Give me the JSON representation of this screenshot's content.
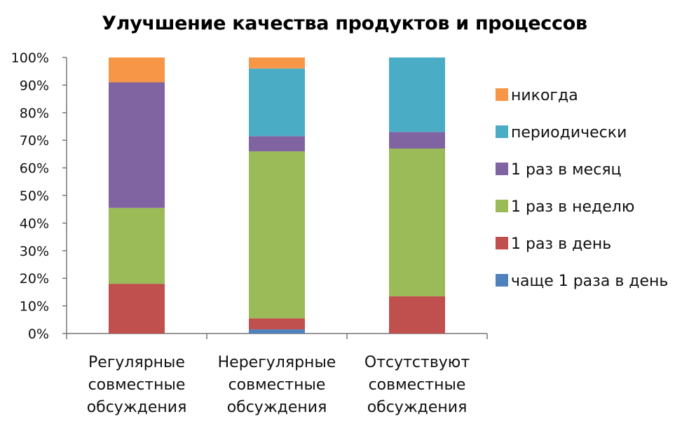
{
  "chart_data": {
    "type": "bar",
    "stacked": true,
    "title": "Улучшение качества продуктов и процессов",
    "categories": [
      [
        "Регулярные",
        "совместные",
        "обсуждения"
      ],
      [
        "Нерегулярные",
        "совместные",
        "обсуждения"
      ],
      [
        "Отсутствуют",
        "совместные",
        "обсуждения"
      ]
    ],
    "series": [
      {
        "name": "чаще 1 раза в день",
        "color": "#4f81bd",
        "values": [
          0,
          1.5,
          0
        ]
      },
      {
        "name": "1 раз в день",
        "color": "#c0504d",
        "values": [
          18,
          4,
          13.5
        ]
      },
      {
        "name": "1 раз в неделю",
        "color": "#9bbb59",
        "values": [
          27.5,
          60.5,
          53.5
        ]
      },
      {
        "name": "1 раз в месяц",
        "color": "#8064a2",
        "values": [
          45.5,
          5.5,
          6
        ]
      },
      {
        "name": "периодически",
        "color": "#4bacc6",
        "values": [
          0,
          24.5,
          27
        ]
      },
      {
        "name": "никогда",
        "color": "#f79646",
        "values": [
          9,
          4,
          0
        ]
      }
    ],
    "y_ticks": [
      "0%",
      "10%",
      "20%",
      "30%",
      "40%",
      "50%",
      "60%",
      "70%",
      "80%",
      "90%",
      "100%"
    ],
    "ylim": [
      0,
      100
    ],
    "grid": false,
    "legend_position": "right"
  }
}
